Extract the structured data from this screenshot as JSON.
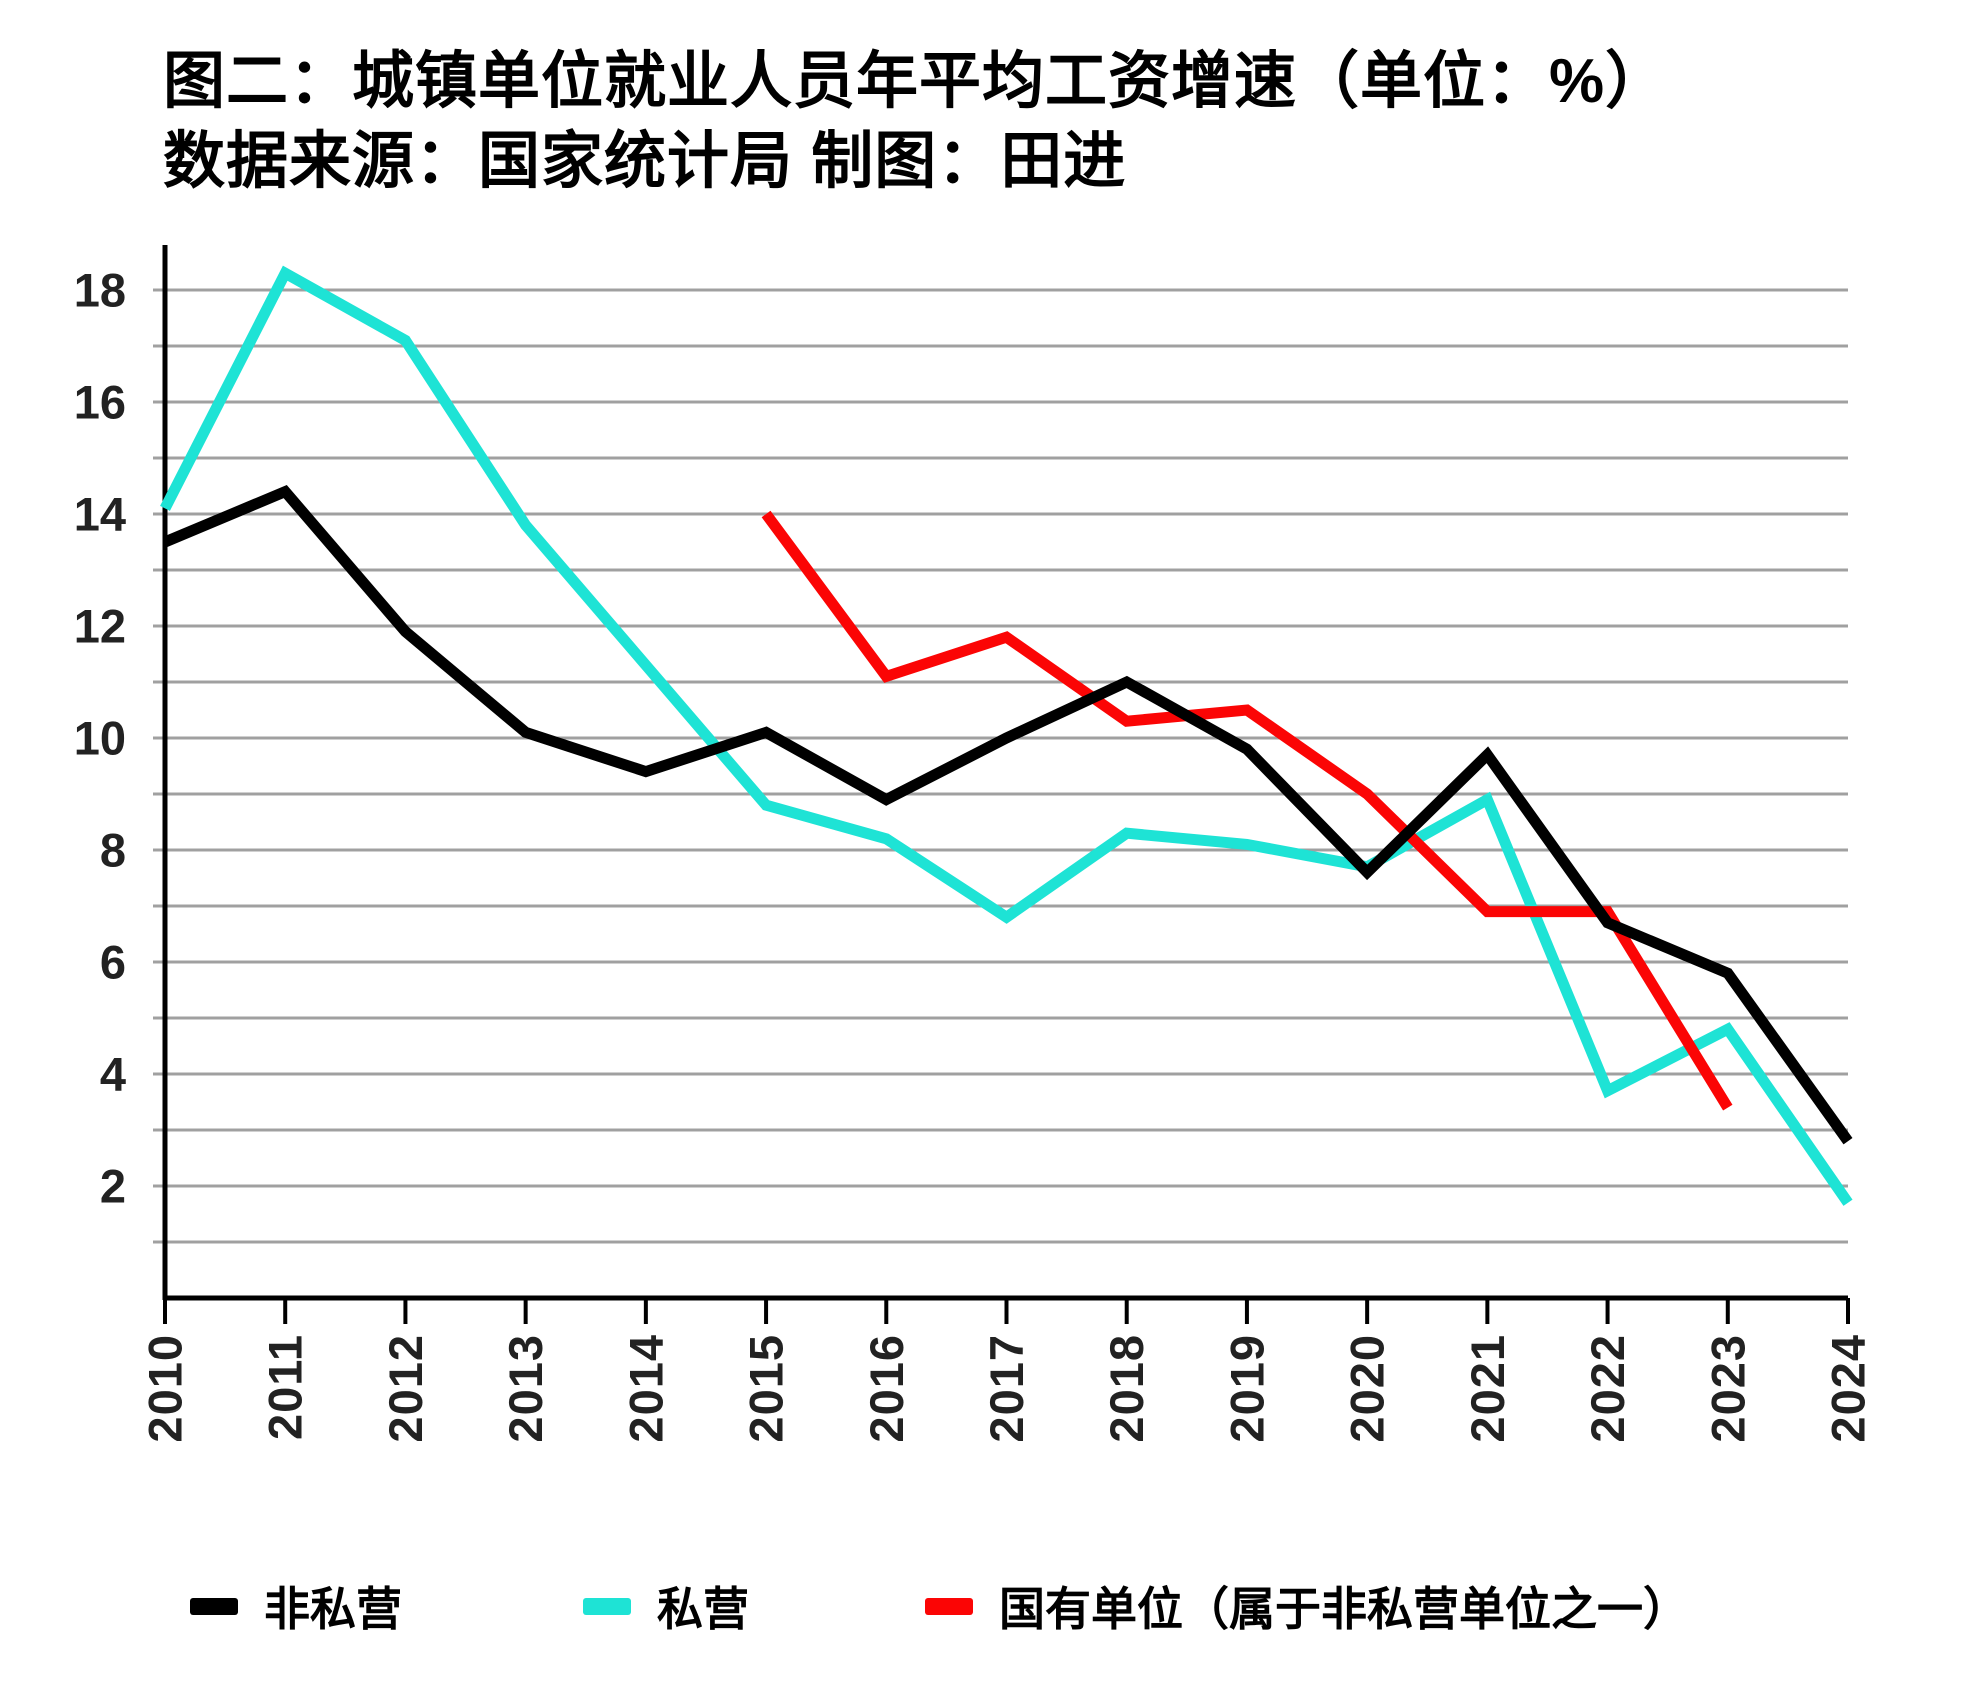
{
  "title": {
    "line1": "图二：城镇单位就业人员年平均工资增速（单位：%）",
    "line2": "数据来源：国家统计局 制图：田进"
  },
  "colors": {
    "non_private": "#000000",
    "private": "#1EE3D5",
    "state_owned": "#FB0505",
    "gridline": "#A0A0A0",
    "axis": "#000000",
    "tick_label": "#222222",
    "background": "#FFFFFF"
  },
  "chart_data": {
    "type": "line",
    "x": [
      2010,
      2011,
      2012,
      2013,
      2014,
      2015,
      2016,
      2017,
      2018,
      2019,
      2020,
      2021,
      2022,
      2023,
      2024
    ],
    "series": [
      {
        "name": "非私营",
        "color_key": "non_private",
        "values": [
          13.5,
          14.4,
          11.9,
          10.1,
          9.4,
          10.1,
          8.9,
          10.0,
          11.0,
          9.8,
          7.6,
          9.7,
          6.7,
          5.8,
          2.8
        ]
      },
      {
        "name": "私营",
        "color_key": "private",
        "values": [
          14.1,
          18.3,
          17.1,
          13.8,
          11.3,
          8.8,
          8.2,
          6.8,
          8.3,
          8.1,
          7.7,
          8.9,
          3.7,
          4.8,
          1.7
        ]
      },
      {
        "name": "国有单位（属于非私营单位之一）",
        "color_key": "state_owned",
        "values": [
          null,
          null,
          null,
          null,
          null,
          14.0,
          11.1,
          11.8,
          10.3,
          10.5,
          9.0,
          6.9,
          6.9,
          3.4,
          null
        ]
      }
    ],
    "title": "图二：城镇单位就业人员年平均工资增速（单位：%）",
    "xlabel": "",
    "ylabel": "",
    "ylim": [
      0,
      18.8
    ],
    "grid": true,
    "grid_step": 1,
    "y_tick_labels": [
      2,
      4,
      6,
      8,
      10,
      12,
      14,
      16,
      18
    ],
    "legend_position": "bottom"
  },
  "legend": {
    "items": [
      {
        "label": "非私营",
        "color_key": "non_private"
      },
      {
        "label": "私营",
        "color_key": "private"
      },
      {
        "label": "国有单位（属于非私营单位之一）",
        "color_key": "state_owned"
      }
    ]
  }
}
